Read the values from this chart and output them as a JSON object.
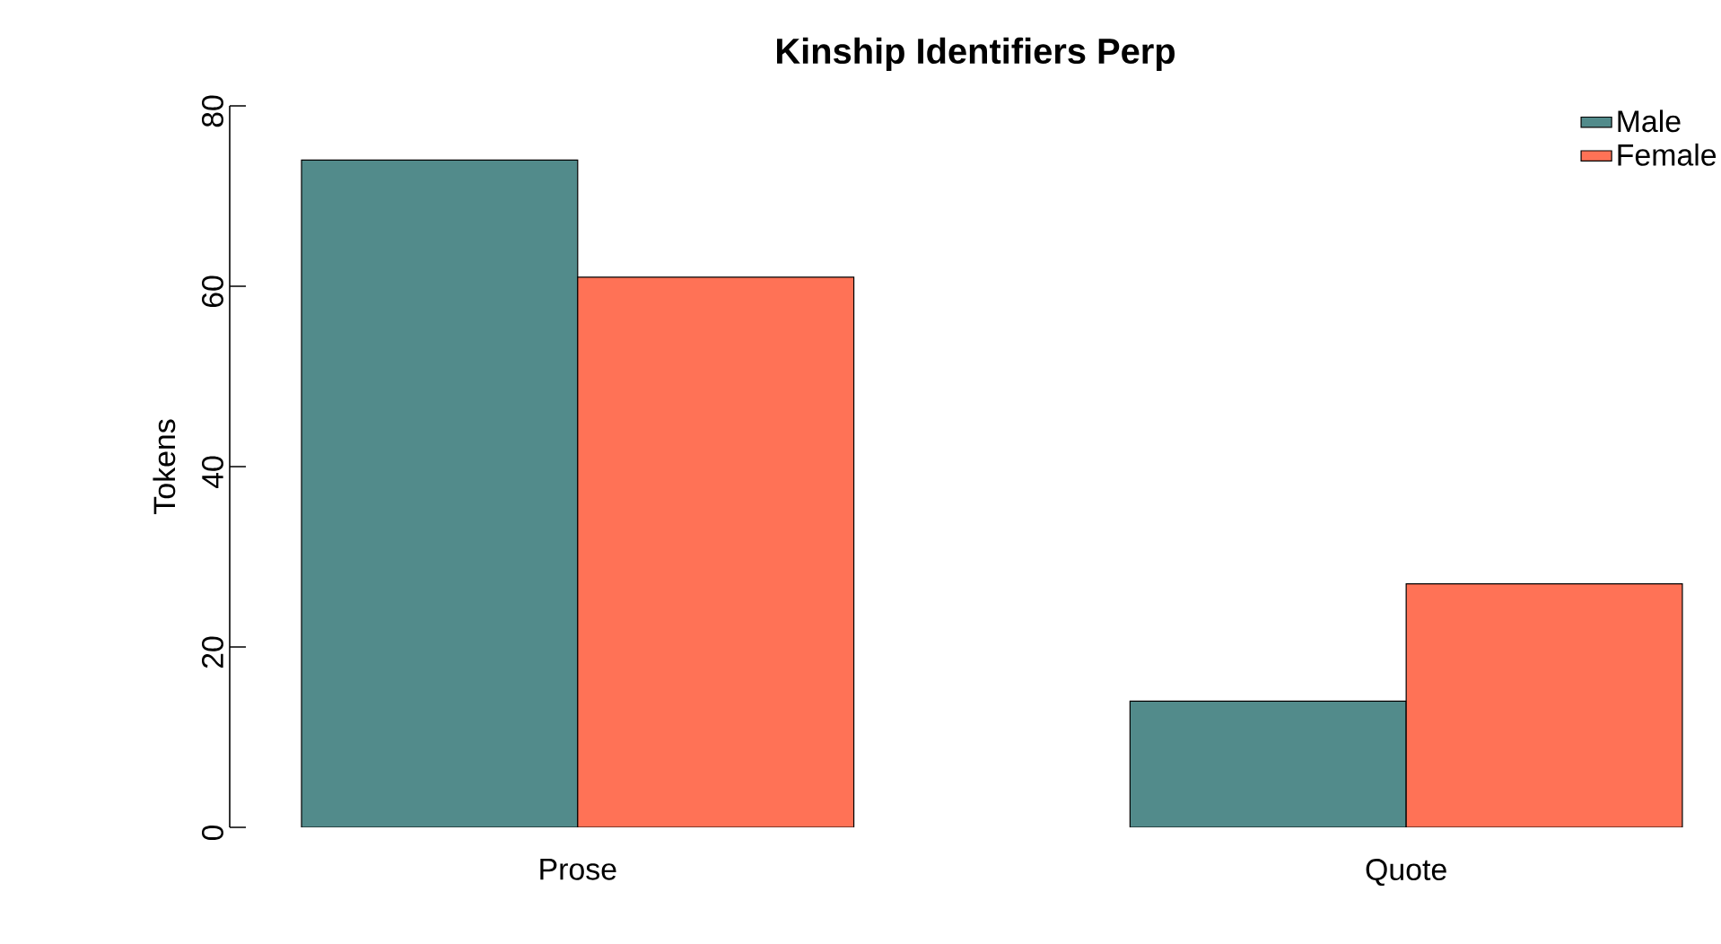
{
  "chart_data": {
    "type": "bar",
    "title": "Kinship Identifiers Perp",
    "ylabel": "Tokens",
    "categories": [
      "Prose",
      "Quote"
    ],
    "series": [
      {
        "name": "Male",
        "color": "#528b8b",
        "values": [
          74,
          14
        ]
      },
      {
        "name": "Female",
        "color": "#ff7256",
        "values": [
          61,
          27
        ]
      }
    ],
    "ylim": [
      0,
      80
    ],
    "yticks": [
      0,
      20,
      40,
      60,
      80
    ],
    "grid": false,
    "legend": "top right"
  }
}
